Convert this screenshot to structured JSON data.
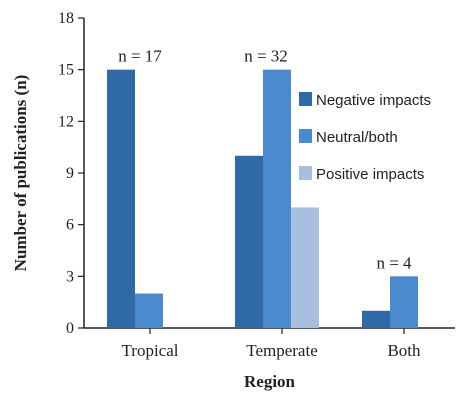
{
  "chart_data": {
    "type": "bar",
    "xlabel": "Region",
    "ylabel": "Number of publications (n)",
    "ylim": [
      0,
      18
    ],
    "yticks": [
      "0",
      "3",
      "6",
      "9",
      "12",
      "15",
      "18"
    ],
    "categories": [
      "Tropical",
      "Temperate",
      "Both"
    ],
    "series": [
      {
        "name": "Negative impacts",
        "values": [
          15,
          10,
          1
        ],
        "color": "#2f6aa6"
      },
      {
        "name": "Neutral/both",
        "values": [
          2,
          15,
          3
        ],
        "color": "#4a8bd0"
      },
      {
        "name": "Positive impacts",
        "values": [
          0,
          7,
          0
        ],
        "color": "#a9bfe0"
      }
    ],
    "annotations": [
      "n = 17",
      "n = 32",
      "n = 4"
    ],
    "legend_position": "right",
    "grid": false
  }
}
